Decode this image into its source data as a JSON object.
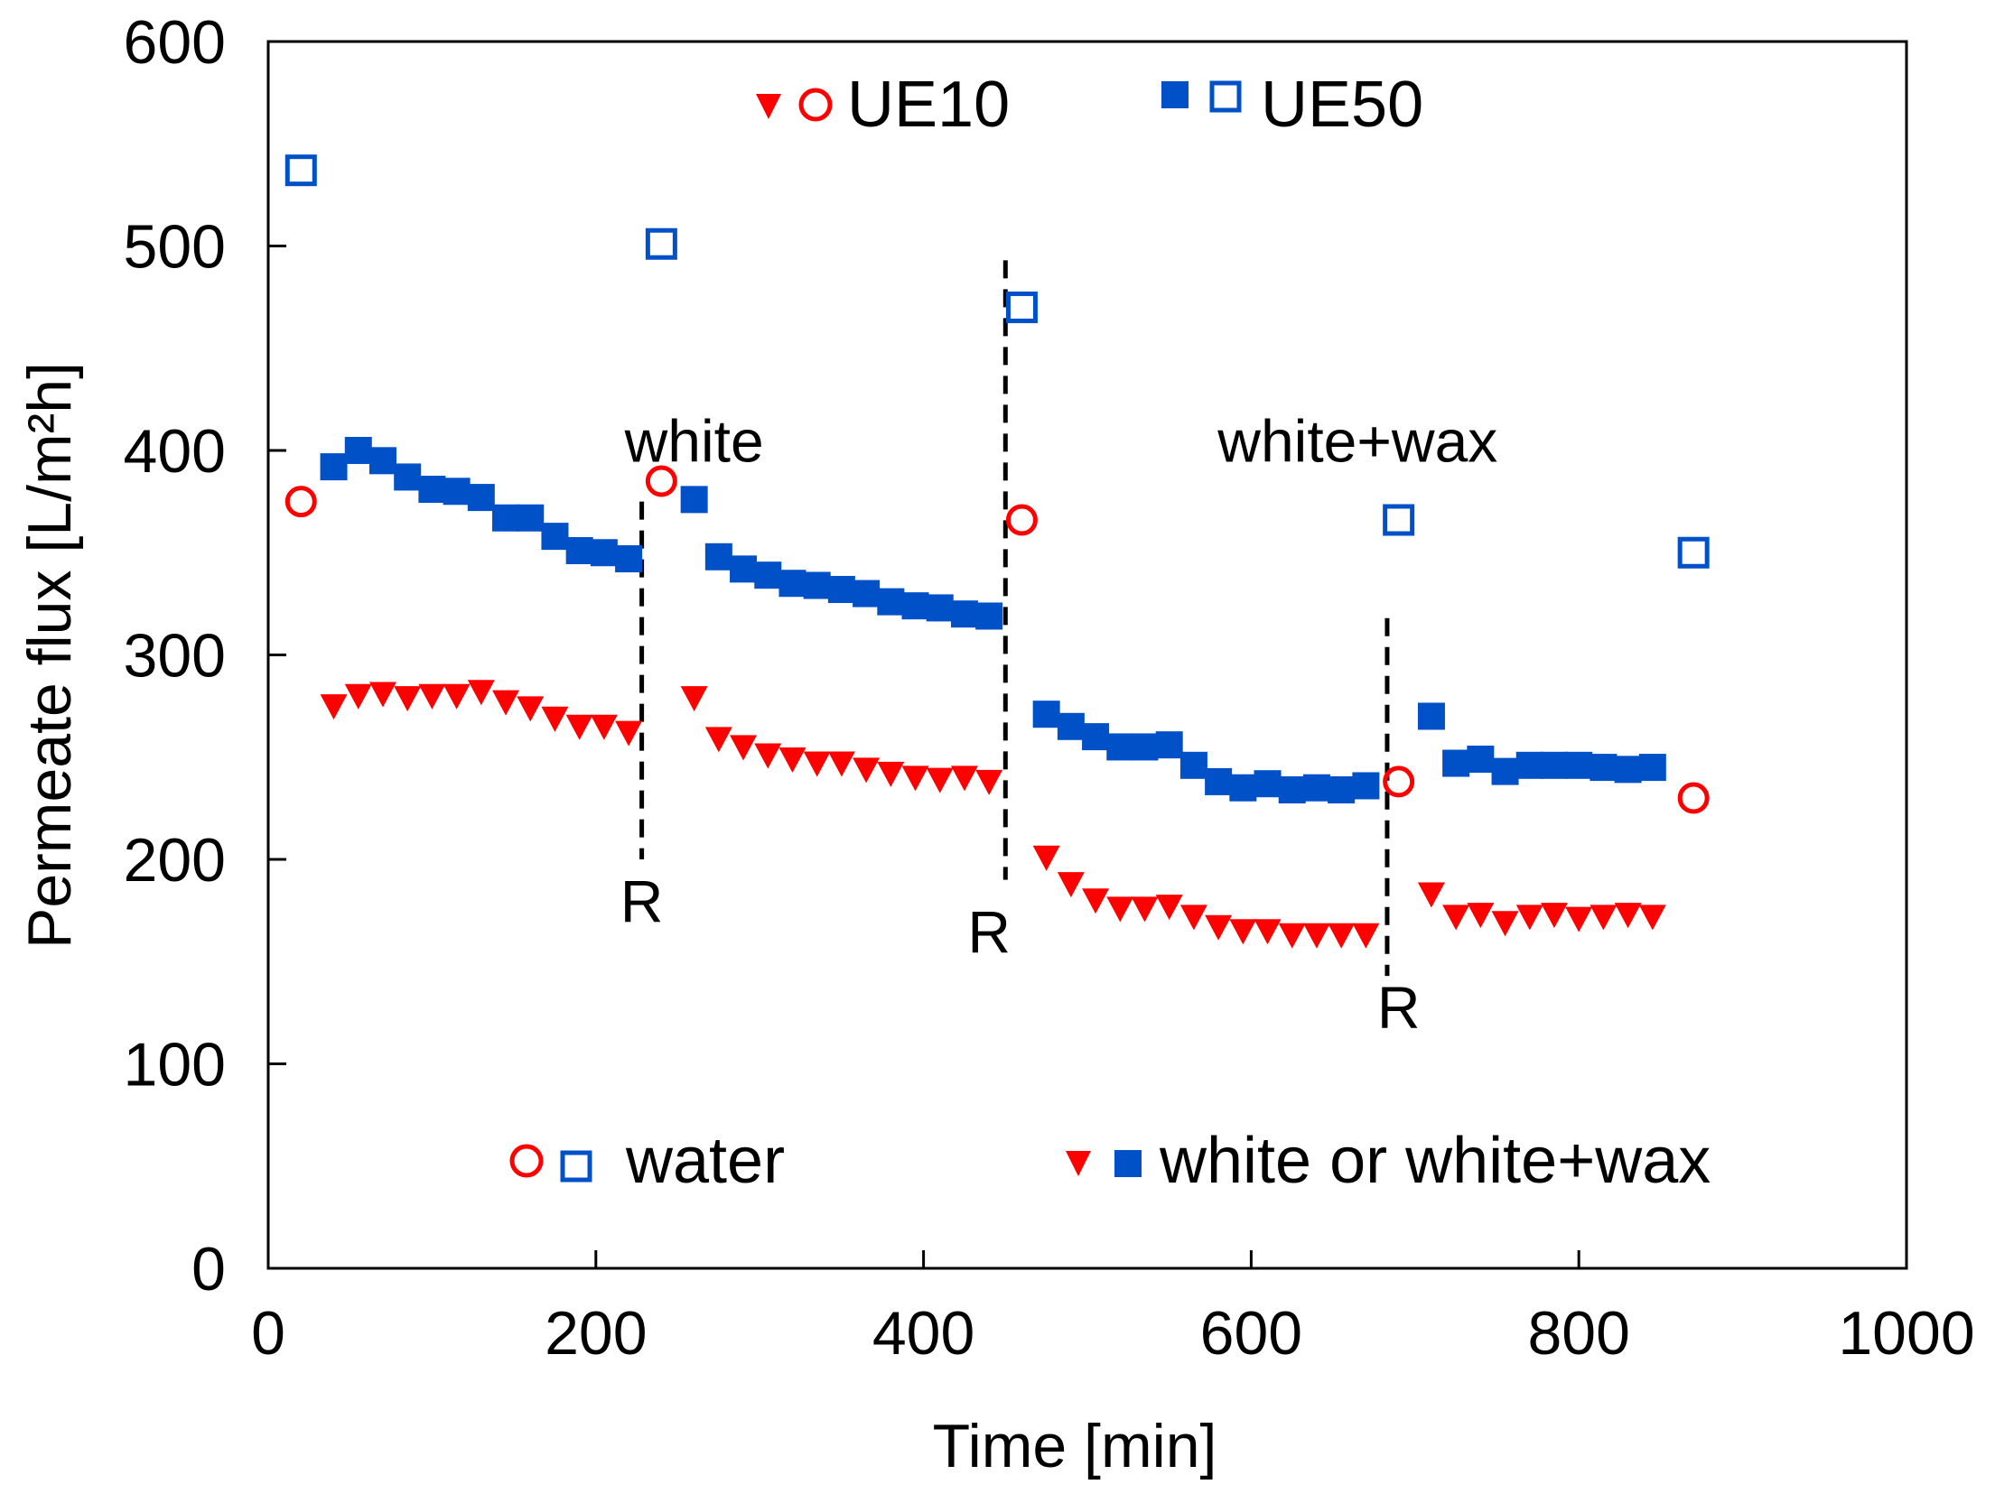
{
  "chart_data": {
    "type": "scatter",
    "title": "",
    "xlabel": "Time [min]",
    "ylabel": "Permeate flux [L/m²h]",
    "xlim": [
      0,
      1000
    ],
    "ylim": [
      0,
      600
    ],
    "xticks": [
      "0",
      "200",
      "400",
      "600",
      "800",
      "1000"
    ],
    "yticks": [
      "0",
      "100",
      "200",
      "300",
      "400",
      "500",
      "600"
    ],
    "colors": {
      "ue10": "#ff0000",
      "ue50": "#0050c8"
    },
    "series": [
      {
        "name": "UE10 water",
        "marker": "open-circle",
        "color": "#ff0000",
        "points": [
          [
            20,
            375
          ],
          [
            240,
            385
          ],
          [
            460,
            366
          ],
          [
            690,
            238
          ],
          [
            870,
            230
          ]
        ]
      },
      {
        "name": "UE10 white or white+wax",
        "marker": "filled-triangle-down",
        "color": "#ff0000",
        "points": [
          [
            40,
            275
          ],
          [
            55,
            280
          ],
          [
            70,
            281
          ],
          [
            85,
            279
          ],
          [
            100,
            280
          ],
          [
            115,
            280
          ],
          [
            130,
            282
          ],
          [
            145,
            277
          ],
          [
            160,
            274
          ],
          [
            175,
            269
          ],
          [
            190,
            265
          ],
          [
            205,
            265
          ],
          [
            220,
            262
          ],
          [
            260,
            279
          ],
          [
            275,
            259
          ],
          [
            290,
            255
          ],
          [
            305,
            251
          ],
          [
            320,
            249
          ],
          [
            335,
            247
          ],
          [
            350,
            247
          ],
          [
            365,
            244
          ],
          [
            380,
            242
          ],
          [
            395,
            240
          ],
          [
            410,
            239
          ],
          [
            425,
            240
          ],
          [
            440,
            238
          ],
          [
            475,
            201
          ],
          [
            490,
            188
          ],
          [
            505,
            180
          ],
          [
            520,
            176
          ],
          [
            535,
            176
          ],
          [
            550,
            177
          ],
          [
            565,
            172
          ],
          [
            580,
            167
          ],
          [
            595,
            165
          ],
          [
            610,
            165
          ],
          [
            625,
            163
          ],
          [
            640,
            163
          ],
          [
            655,
            163
          ],
          [
            670,
            163
          ],
          [
            710,
            183
          ],
          [
            725,
            172
          ],
          [
            740,
            173
          ],
          [
            755,
            169
          ],
          [
            770,
            172
          ],
          [
            785,
            173
          ],
          [
            800,
            171
          ],
          [
            815,
            172
          ],
          [
            830,
            173
          ],
          [
            845,
            172
          ]
        ]
      },
      {
        "name": "UE50 water",
        "marker": "open-square",
        "color": "#0050c8",
        "points": [
          [
            20,
            537
          ],
          [
            240,
            501
          ],
          [
            460,
            470
          ],
          [
            690,
            366
          ],
          [
            870,
            350
          ]
        ]
      },
      {
        "name": "UE50 white or white+wax",
        "marker": "filled-square",
        "color": "#0050c8",
        "points": [
          [
            40,
            392
          ],
          [
            55,
            400
          ],
          [
            70,
            395
          ],
          [
            85,
            387
          ],
          [
            100,
            381
          ],
          [
            115,
            380
          ],
          [
            130,
            377
          ],
          [
            145,
            367
          ],
          [
            160,
            367
          ],
          [
            175,
            358
          ],
          [
            190,
            351
          ],
          [
            205,
            350
          ],
          [
            220,
            347
          ],
          [
            260,
            376
          ],
          [
            275,
            348
          ],
          [
            290,
            342
          ],
          [
            305,
            339
          ],
          [
            320,
            335
          ],
          [
            335,
            334
          ],
          [
            350,
            332
          ],
          [
            365,
            330
          ],
          [
            380,
            326
          ],
          [
            395,
            324
          ],
          [
            410,
            323
          ],
          [
            425,
            320
          ],
          [
            440,
            319
          ],
          [
            475,
            271
          ],
          [
            490,
            265
          ],
          [
            505,
            260
          ],
          [
            520,
            255
          ],
          [
            535,
            255
          ],
          [
            550,
            256
          ],
          [
            565,
            246
          ],
          [
            580,
            238
          ],
          [
            595,
            235
          ],
          [
            610,
            237
          ],
          [
            625,
            234
          ],
          [
            640,
            235
          ],
          [
            655,
            234
          ],
          [
            670,
            236
          ],
          [
            710,
            270
          ],
          [
            725,
            247
          ],
          [
            740,
            249
          ],
          [
            755,
            243
          ],
          [
            770,
            246
          ],
          [
            785,
            246
          ],
          [
            800,
            246
          ],
          [
            815,
            245
          ],
          [
            830,
            244
          ],
          [
            845,
            245
          ]
        ]
      }
    ],
    "regeneration_lines": [
      {
        "x": 228,
        "y_top": 375,
        "y_bottom": 200,
        "label": "R",
        "label_x": 228,
        "label_y": 180
      },
      {
        "x": 450,
        "y_top": 493,
        "y_bottom": 190,
        "label": "R",
        "label_x": 440,
        "label_y": 165
      },
      {
        "x": 683,
        "y_top": 318,
        "y_bottom": 143,
        "label": "R",
        "label_x": 690,
        "label_y": 128
      }
    ],
    "annotations": [
      {
        "text": "white",
        "x": 260,
        "y": 405
      },
      {
        "text": "white+wax",
        "x": 665,
        "y": 405
      }
    ],
    "legend": {
      "top_left": "UE10",
      "top_right": "UE50",
      "bottom_left": "water",
      "bottom_right": "white or white+wax"
    }
  }
}
